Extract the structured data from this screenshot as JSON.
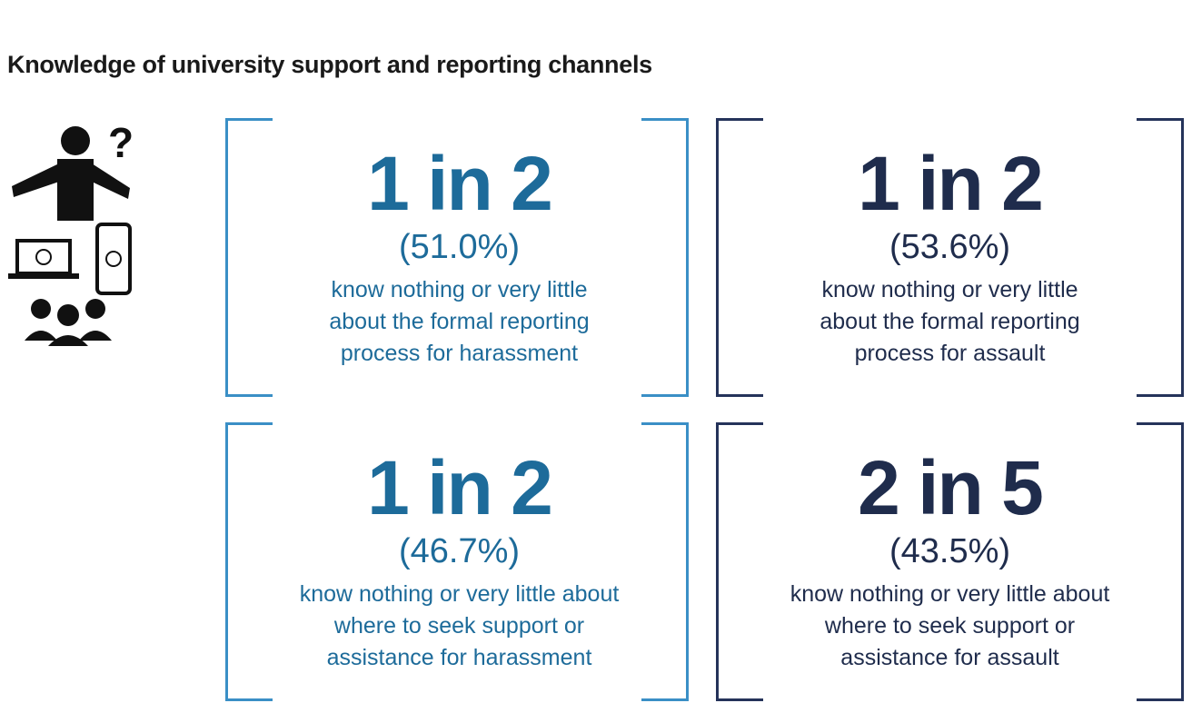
{
  "title": "Knowledge of university support and reporting channels",
  "cards": [
    {
      "ratio": "1 in 2",
      "percent": "(51.0%)",
      "lines": [
        "know nothing or very little",
        "about the formal reporting",
        "process for harassment"
      ]
    },
    {
      "ratio": "1 in 2",
      "percent": "(53.6%)",
      "lines": [
        "know nothing or very little",
        "about the formal reporting",
        "process for assault"
      ]
    },
    {
      "ratio": "1 in 2",
      "percent": "(46.7%)",
      "lines": [
        "know nothing or very little about",
        "where to seek support or",
        "assistance for harassment"
      ]
    },
    {
      "ratio": "2 in 5",
      "percent": "(43.5%)",
      "lines": [
        "know nothing or very little about",
        "where to seek support or",
        "assistance for assault"
      ]
    }
  ]
}
